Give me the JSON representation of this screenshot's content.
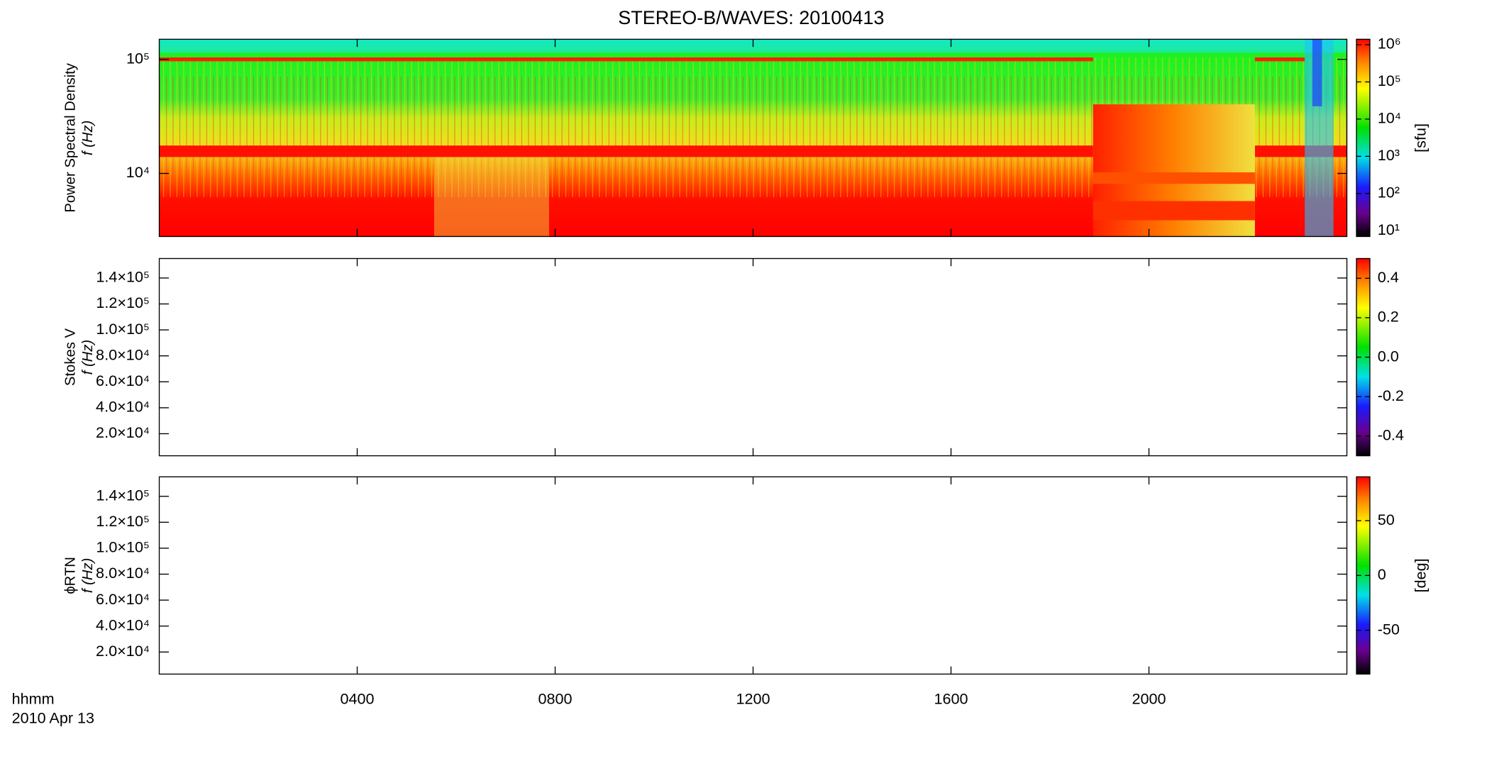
{
  "chart_data": [
    {
      "type": "heatmap",
      "title": "STEREO-B/WAVES: 20100413",
      "ylabel": [
        "Power Spectral Density",
        "f (Hz)"
      ],
      "xlim": [
        0,
        24
      ],
      "xticks": [
        {
          "value": 4,
          "label": "0400"
        },
        {
          "value": 8,
          "label": "0800"
        },
        {
          "value": 12,
          "label": "1200"
        },
        {
          "value": 16,
          "label": "1600"
        },
        {
          "value": 20,
          "label": "2000"
        }
      ],
      "ylim": [
        2800,
        150000
      ],
      "log_y": true,
      "yticks": [
        {
          "value": 10000,
          "label": "10⁴"
        },
        {
          "value": 100000,
          "label": "10⁵"
        }
      ],
      "colorbar": {
        "lim": [
          7,
          1400000
        ],
        "log": true,
        "label": "[sfu]",
        "ticks": [
          {
            "value": 10,
            "label": "10¹"
          },
          {
            "value": 100,
            "label": "10²"
          },
          {
            "value": 1000,
            "label": "10³"
          },
          {
            "value": 10000,
            "label": "10⁴"
          },
          {
            "value": 100000,
            "label": "10⁵"
          },
          {
            "value": 1000000,
            "label": "10⁶"
          }
        ]
      }
    },
    {
      "type": "heatmap",
      "ylabel": [
        "Stokes V",
        "f (Hz)"
      ],
      "xlim": [
        0,
        24
      ],
      "xticks": [
        {
          "value": 4,
          "label": "0400"
        },
        {
          "value": 8,
          "label": "0800"
        },
        {
          "value": 12,
          "label": "1200"
        },
        {
          "value": 16,
          "label": "1600"
        },
        {
          "value": 20,
          "label": "2000"
        }
      ],
      "ylim": [
        3000,
        155000
      ],
      "log_y": false,
      "yticks": [
        {
          "value": 20000,
          "label": "2.0×10⁴"
        },
        {
          "value": 40000,
          "label": "4.0×10⁴"
        },
        {
          "value": 60000,
          "label": "6.0×10⁴"
        },
        {
          "value": 80000,
          "label": "8.0×10⁴"
        },
        {
          "value": 100000,
          "label": "1.0×10⁵"
        },
        {
          "value": 120000,
          "label": "1.2×10⁵"
        },
        {
          "value": 140000,
          "label": "1.4×10⁵"
        }
      ],
      "colorbar": {
        "lim": [
          -0.5,
          0.5
        ],
        "log": false,
        "ticks": [
          -0.4,
          -0.2,
          {
            "value": 0,
            "label": "0.0"
          },
          0.2,
          0.4
        ]
      }
    },
    {
      "type": "heatmap",
      "ylabel": [
        "ϕRTN",
        "f (Hz)"
      ],
      "xlim": [
        0,
        24
      ],
      "xticks": [
        {
          "value": 4,
          "label": "0400"
        },
        {
          "value": 8,
          "label": "0800"
        },
        {
          "value": 12,
          "label": "1200"
        },
        {
          "value": 16,
          "label": "1600"
        },
        {
          "value": 20,
          "label": "2000"
        }
      ],
      "xlabel": [
        "hhmm",
        "2010 Apr 13"
      ],
      "ylim": [
        3000,
        155000
      ],
      "log_y": false,
      "yticks": [
        {
          "value": 20000,
          "label": "2.0×10⁴"
        },
        {
          "value": 40000,
          "label": "4.0×10⁴"
        },
        {
          "value": 60000,
          "label": "6.0×10⁴"
        },
        {
          "value": 80000,
          "label": "8.0×10⁴"
        },
        {
          "value": 100000,
          "label": "1.0×10⁵"
        },
        {
          "value": 120000,
          "label": "1.2×10⁵"
        },
        {
          "value": 140000,
          "label": "1.4×10⁵"
        }
      ],
      "colorbar": {
        "lim": [
          -90,
          90
        ],
        "log": false,
        "label": "[deg]",
        "ticks": [
          -50,
          0,
          50
        ]
      }
    }
  ]
}
